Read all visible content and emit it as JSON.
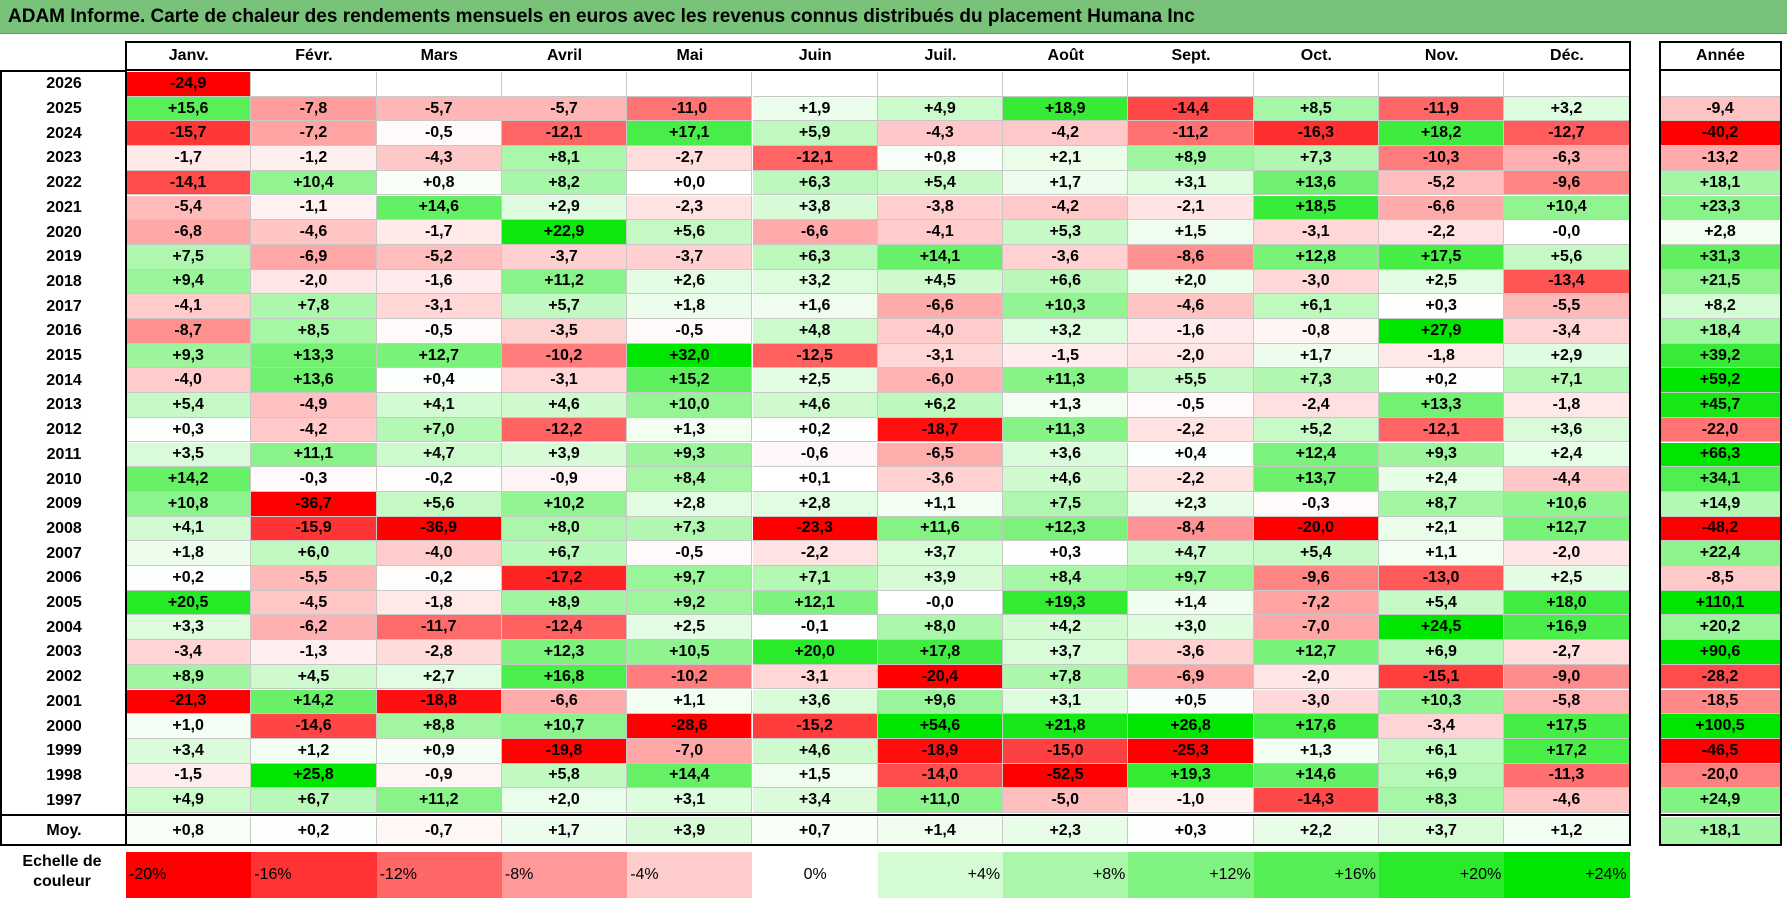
{
  "title": "ADAM Informe. Carte de chaleur des rendements mensuels en euros avec les revenus connus distribués du placement Humana Inc",
  "chart_data": {
    "type": "heatmap",
    "columns": [
      "Janv.",
      "Févr.",
      "Mars",
      "Avril",
      "Mai",
      "Juin",
      "Juil.",
      "Août",
      "Sept.",
      "Oct.",
      "Nov.",
      "Déc."
    ],
    "year_column_label": "Année",
    "average_row_label": "Moy.",
    "rows": [
      {
        "year": "2026",
        "values": [
          "-24,9",
          "",
          "",
          "",
          "",
          "",
          "",
          "",
          "",
          "",
          "",
          ""
        ],
        "annual": ""
      },
      {
        "year": "2025",
        "values": [
          "+15,6",
          "-7,8",
          "-5,7",
          "-5,7",
          "-11,0",
          "+1,9",
          "+4,9",
          "+18,9",
          "-14,4",
          "+8,5",
          "-11,9",
          "+3,2"
        ],
        "annual": "-9,4"
      },
      {
        "year": "2024",
        "values": [
          "-15,7",
          "-7,2",
          "-0,5",
          "-12,1",
          "+17,1",
          "+5,9",
          "-4,3",
          "-4,2",
          "-11,2",
          "-16,3",
          "+18,2",
          "-12,7"
        ],
        "annual": "-40,2"
      },
      {
        "year": "2023",
        "values": [
          "-1,7",
          "-1,2",
          "-4,3",
          "+8,1",
          "-2,7",
          "-12,1",
          "+0,8",
          "+2,1",
          "+8,9",
          "+7,3",
          "-10,3",
          "-6,3"
        ],
        "annual": "-13,2"
      },
      {
        "year": "2022",
        "values": [
          "-14,1",
          "+10,4",
          "+0,8",
          "+8,2",
          "+0,0",
          "+6,3",
          "+5,4",
          "+1,7",
          "+3,1",
          "+13,6",
          "-5,2",
          "-9,6"
        ],
        "annual": "+18,1"
      },
      {
        "year": "2021",
        "values": [
          "-5,4",
          "-1,1",
          "+14,6",
          "+2,9",
          "-2,3",
          "+3,8",
          "-3,8",
          "-4,2",
          "-2,1",
          "+18,5",
          "-6,6",
          "+10,4"
        ],
        "annual": "+23,3"
      },
      {
        "year": "2020",
        "values": [
          "-6,8",
          "-4,6",
          "-1,7",
          "+22,9",
          "+5,6",
          "-6,6",
          "-4,1",
          "+5,3",
          "+1,5",
          "-3,1",
          "-2,2",
          "-0,0"
        ],
        "annual": "+2,8"
      },
      {
        "year": "2019",
        "values": [
          "+7,5",
          "-6,9",
          "-5,2",
          "-3,7",
          "-3,7",
          "+6,3",
          "+14,1",
          "-3,6",
          "-8,6",
          "+12,8",
          "+17,5",
          "+5,6"
        ],
        "annual": "+31,3"
      },
      {
        "year": "2018",
        "values": [
          "+9,4",
          "-2,0",
          "-1,6",
          "+11,2",
          "+2,6",
          "+3,2",
          "+4,5",
          "+6,6",
          "+2,0",
          "-3,0",
          "+2,5",
          "-13,4"
        ],
        "annual": "+21,5"
      },
      {
        "year": "2017",
        "values": [
          "-4,1",
          "+7,8",
          "-3,1",
          "+5,7",
          "+1,8",
          "+1,6",
          "-6,6",
          "+10,3",
          "-4,6",
          "+6,1",
          "+0,3",
          "-5,5"
        ],
        "annual": "+8,2"
      },
      {
        "year": "2016",
        "values": [
          "-8,7",
          "+8,5",
          "-0,5",
          "-3,5",
          "-0,5",
          "+4,8",
          "-4,0",
          "+3,2",
          "-1,6",
          "-0,8",
          "+27,9",
          "-3,4"
        ],
        "annual": "+18,4"
      },
      {
        "year": "2015",
        "values": [
          "+9,3",
          "+13,3",
          "+12,7",
          "-10,2",
          "+32,0",
          "-12,5",
          "-3,1",
          "-1,5",
          "-2,0",
          "+1,7",
          "-1,8",
          "+2,9"
        ],
        "annual": "+39,2"
      },
      {
        "year": "2014",
        "values": [
          "-4,0",
          "+13,6",
          "+0,4",
          "-3,1",
          "+15,2",
          "+2,5",
          "-6,0",
          "+11,3",
          "+5,5",
          "+7,3",
          "+0,2",
          "+7,1"
        ],
        "annual": "+59,2"
      },
      {
        "year": "2013",
        "values": [
          "+5,4",
          "-4,9",
          "+4,1",
          "+4,6",
          "+10,0",
          "+4,6",
          "+6,2",
          "+1,3",
          "-0,5",
          "-2,4",
          "+13,3",
          "-1,8"
        ],
        "annual": "+45,7"
      },
      {
        "year": "2012",
        "values": [
          "+0,3",
          "-4,2",
          "+7,0",
          "-12,2",
          "+1,3",
          "+0,2",
          "-18,7",
          "+11,3",
          "-2,2",
          "+5,2",
          "-12,1",
          "+3,6"
        ],
        "annual": "-22,0"
      },
      {
        "year": "2011",
        "values": [
          "+3,5",
          "+11,1",
          "+4,7",
          "+3,9",
          "+9,3",
          "-0,6",
          "-6,5",
          "+3,6",
          "+0,4",
          "+12,4",
          "+9,3",
          "+2,4"
        ],
        "annual": "+66,3"
      },
      {
        "year": "2010",
        "values": [
          "+14,2",
          "-0,3",
          "-0,2",
          "-0,9",
          "+8,4",
          "+0,1",
          "-3,6",
          "+4,6",
          "-2,2",
          "+13,7",
          "+2,4",
          "-4,4"
        ],
        "annual": "+34,1"
      },
      {
        "year": "2009",
        "values": [
          "+10,8",
          "-36,7",
          "+5,6",
          "+10,2",
          "+2,8",
          "+2,8",
          "+1,1",
          "+7,5",
          "+2,3",
          "-0,3",
          "+8,7",
          "+10,6"
        ],
        "annual": "+14,9"
      },
      {
        "year": "2008",
        "values": [
          "+4,1",
          "-15,9",
          "-36,9",
          "+8,0",
          "+7,3",
          "-23,3",
          "+11,6",
          "+12,3",
          "-8,4",
          "-20,0",
          "+2,1",
          "+12,7"
        ],
        "annual": "-48,2"
      },
      {
        "year": "2007",
        "values": [
          "+1,8",
          "+6,0",
          "-4,0",
          "+6,7",
          "-0,5",
          "-2,2",
          "+3,7",
          "+0,3",
          "+4,7",
          "+5,4",
          "+1,1",
          "-2,0"
        ],
        "annual": "+22,4"
      },
      {
        "year": "2006",
        "values": [
          "+0,2",
          "-5,5",
          "-0,2",
          "-17,2",
          "+9,7",
          "+7,1",
          "+3,9",
          "+8,4",
          "+9,7",
          "-9,6",
          "-13,0",
          "+2,5"
        ],
        "annual": "-8,5"
      },
      {
        "year": "2005",
        "values": [
          "+20,5",
          "-4,5",
          "-1,8",
          "+8,9",
          "+9,2",
          "+12,1",
          "-0,0",
          "+19,3",
          "+1,4",
          "-7,2",
          "+5,4",
          "+18,0"
        ],
        "annual": "+110,1"
      },
      {
        "year": "2004",
        "values": [
          "+3,3",
          "-6,2",
          "-11,7",
          "-12,4",
          "+2,5",
          "-0,1",
          "+8,0",
          "+4,2",
          "+3,0",
          "-7,0",
          "+24,5",
          "+16,9"
        ],
        "annual": "+20,2"
      },
      {
        "year": "2003",
        "values": [
          "-3,4",
          "-1,3",
          "-2,8",
          "+12,3",
          "+10,5",
          "+20,0",
          "+17,8",
          "+3,7",
          "-3,6",
          "+12,7",
          "+6,9",
          "-2,7"
        ],
        "annual": "+90,6"
      },
      {
        "year": "2002",
        "values": [
          "+8,9",
          "+4,5",
          "+2,7",
          "+16,8",
          "-10,2",
          "-3,1",
          "-20,4",
          "+7,8",
          "-6,9",
          "-2,0",
          "-15,1",
          "-9,0"
        ],
        "annual": "-28,2"
      },
      {
        "year": "2001",
        "values": [
          "-21,3",
          "+14,2",
          "-18,8",
          "-6,6",
          "+1,1",
          "+3,6",
          "+9,6",
          "+3,1",
          "+0,5",
          "-3,0",
          "+10,3",
          "-5,8"
        ],
        "annual": "-18,5"
      },
      {
        "year": "2000",
        "values": [
          "+1,0",
          "-14,6",
          "+8,8",
          "+10,7",
          "-28,6",
          "-15,2",
          "+54,6",
          "+21,8",
          "+26,8",
          "+17,6",
          "-3,4",
          "+17,5"
        ],
        "annual": "+100,5"
      },
      {
        "year": "1999",
        "values": [
          "+3,4",
          "+1,2",
          "+0,9",
          "-19,8",
          "-7,0",
          "+4,6",
          "-18,9",
          "-15,0",
          "-25,3",
          "+1,3",
          "+6,1",
          "+17,2"
        ],
        "annual": "-46,5"
      },
      {
        "year": "1998",
        "values": [
          "-1,5",
          "+25,8",
          "-0,9",
          "+5,8",
          "+14,4",
          "+1,5",
          "-14,0",
          "-52,5",
          "+19,3",
          "+14,6",
          "+6,9",
          "-11,3"
        ],
        "annual": "-20,0"
      },
      {
        "year": "1997",
        "values": [
          "+4,9",
          "+6,7",
          "+11,2",
          "+2,0",
          "+3,1",
          "+3,4",
          "+11,0",
          "-5,0",
          "-1,0",
          "-14,3",
          "+8,3",
          "-4,6"
        ],
        "annual": "+24,9"
      }
    ],
    "average": {
      "values": [
        "+0,8",
        "+0,2",
        "-0,7",
        "+1,7",
        "+3,9",
        "+0,7",
        "+1,4",
        "+2,3",
        "+0,3",
        "+2,2",
        "+3,7",
        "+1,2"
      ],
      "annual": "+18,1"
    },
    "color_scale": {
      "label": "Echelle de couleur",
      "stops": [
        "-20%",
        "-16%",
        "-12%",
        "-8%",
        "-4%",
        "0%",
        "+4%",
        "+8%",
        "+12%",
        "+16%",
        "+20%",
        "+24%"
      ],
      "negative_color": "#ff0000",
      "neutral_color": "#ffffff",
      "positive_color": "#00e600"
    }
  }
}
